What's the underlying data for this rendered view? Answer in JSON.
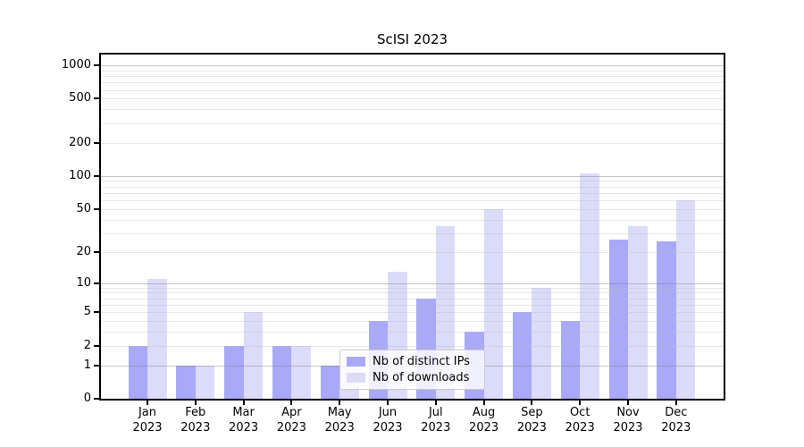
{
  "title": "ScISI 2023",
  "chart_data": {
    "type": "bar",
    "title": "ScISI 2023",
    "categories": [
      {
        "month": "Jan",
        "year": "2023"
      },
      {
        "month": "Feb",
        "year": "2023"
      },
      {
        "month": "Mar",
        "year": "2023"
      },
      {
        "month": "Apr",
        "year": "2023"
      },
      {
        "month": "May",
        "year": "2023"
      },
      {
        "month": "Jun",
        "year": "2023"
      },
      {
        "month": "Jul",
        "year": "2023"
      },
      {
        "month": "Aug",
        "year": "2023"
      },
      {
        "month": "Sep",
        "year": "2023"
      },
      {
        "month": "Oct",
        "year": "2023"
      },
      {
        "month": "Nov",
        "year": "2023"
      },
      {
        "month": "Dec",
        "year": "2023"
      }
    ],
    "series": [
      {
        "name": "Nb of distinct IPs",
        "color": "#a9a9f8",
        "values": [
          2,
          1,
          2,
          2,
          1,
          4,
          7,
          3,
          5,
          4,
          26,
          25
        ]
      },
      {
        "name": "Nb of downloads",
        "color": "#dbdbfa",
        "values": [
          11,
          1,
          5,
          2,
          1,
          13,
          35,
          50,
          9,
          105,
          35,
          60
        ]
      }
    ],
    "yscale": "log1p",
    "ylim": [
      0,
      1000
    ],
    "y_tick_labels": [
      0,
      1,
      2,
      5,
      10,
      20,
      50,
      100,
      200,
      500,
      1000
    ],
    "y_major_gridlines": [
      1,
      10,
      100,
      1000
    ],
    "y_minor_gridlines": [
      2,
      3,
      4,
      5,
      6,
      7,
      8,
      9,
      20,
      30,
      40,
      50,
      60,
      70,
      80,
      90,
      200,
      300,
      400,
      500,
      600,
      700,
      800,
      900
    ],
    "grid": "both",
    "legend_position": "lower center"
  }
}
